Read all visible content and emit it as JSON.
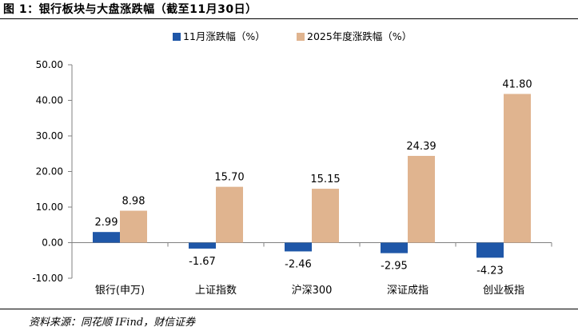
{
  "figure_title": "图 1：银行板块与大盘涨跌幅（截至11月30日）",
  "source_note": "资料来源：同花顺 IFind，财信证券",
  "colors": {
    "series1": "#1f57a8",
    "series2": "#e0b48f",
    "axis": "#808080"
  },
  "chart_data": {
    "type": "bar",
    "title": "",
    "xlabel": "",
    "ylabel": "",
    "ylim": [
      -10,
      50
    ],
    "yticks": [
      -10,
      0,
      10,
      20,
      30,
      40,
      50
    ],
    "ytick_labels": [
      "-10.00",
      "0.00",
      "10.00",
      "20.00",
      "30.00",
      "40.00",
      "50.00"
    ],
    "categories": [
      "银行(申万)",
      "上证指数",
      "沪深300",
      "深证成指",
      "创业板指"
    ],
    "series": [
      {
        "name": "11月涨跌幅（%）",
        "values": [
          2.99,
          -1.67,
          -2.46,
          -2.95,
          -4.23
        ],
        "labels": [
          "2.99",
          "-1.67",
          "-2.46",
          "-2.95",
          "-4.23"
        ]
      },
      {
        "name": "2025年度涨跌幅（%）",
        "values": [
          8.98,
          15.7,
          15.15,
          24.39,
          41.8
        ],
        "labels": [
          "8.98",
          "15.70",
          "15.15",
          "24.39",
          "41.80"
        ]
      }
    ],
    "legend_position": "top-center",
    "grid": false
  }
}
